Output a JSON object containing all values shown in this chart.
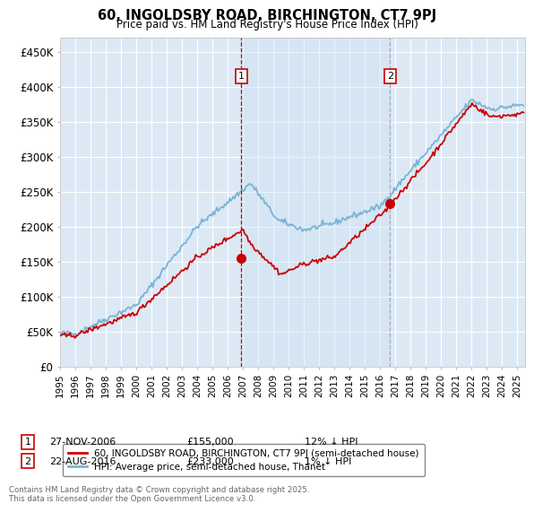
{
  "title": "60, INGOLDSBY ROAD, BIRCHINGTON, CT7 9PJ",
  "subtitle": "Price paid vs. HM Land Registry's House Price Index (HPI)",
  "ylim": [
    0,
    470000
  ],
  "xlim_start": 1995.0,
  "xlim_end": 2025.5,
  "background_color": "#dce9f5",
  "grid_color": "#ffffff",
  "legend_entry1": "60, INGOLDSBY ROAD, BIRCHINGTON, CT7 9PJ (semi-detached house)",
  "legend_entry2": "HPI: Average price, semi-detached house, Thanet",
  "sale1_date": "27-NOV-2006",
  "sale1_price": "£155,000",
  "sale1_hpi": "12% ↓ HPI",
  "sale1_x": 2006.9,
  "sale1_y": 155000,
  "sale2_date": "22-AUG-2016",
  "sale2_price": "£233,000",
  "sale2_hpi": "1% ↓ HPI",
  "sale2_x": 2016.64,
  "sale2_y": 233000,
  "vline1_x": 2006.9,
  "vline2_x": 2016.64,
  "footnote": "Contains HM Land Registry data © Crown copyright and database right 2025.\nThis data is licensed under the Open Government Licence v3.0.",
  "hpi_color": "#7ab3d4",
  "price_color": "#cc0000",
  "vline1_color": "#cc0000",
  "vline2_color": "#aaaaaa",
  "shade_color": "#c8dff0"
}
